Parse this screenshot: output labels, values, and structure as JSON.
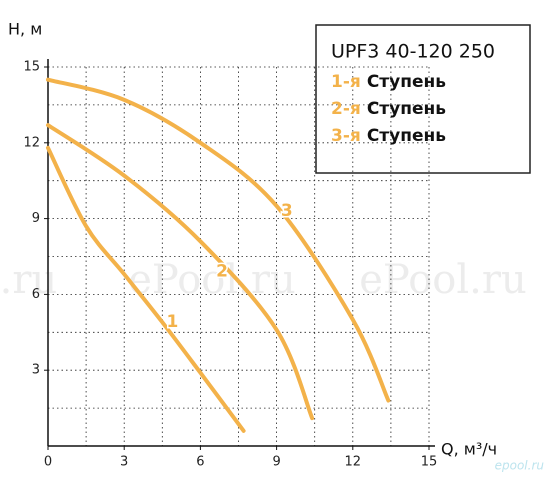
{
  "chart_data": {
    "type": "line",
    "title": "UPF3 40-120 250",
    "y_label": "H, м",
    "x_label": "Q, м³/ч",
    "xlim": [
      0,
      15
    ],
    "ylim": [
      0,
      15
    ],
    "xticks": [
      0,
      3,
      6,
      9,
      12,
      15
    ],
    "yticks": [
      3,
      6,
      9,
      12,
      15
    ],
    "xgrid": [
      1.5,
      3,
      4.5,
      6,
      7.5,
      9,
      10.5,
      12,
      13.5,
      15
    ],
    "ygrid": [
      1.5,
      3,
      4.5,
      6,
      7.5,
      9,
      10.5,
      12,
      13.5,
      15
    ],
    "series": [
      {
        "name": "1",
        "color": "#f3b24a",
        "x": [
          0,
          1.5,
          3,
          4.5,
          6,
          7.7
        ],
        "values": [
          11.8,
          8.7,
          6.8,
          4.9,
          2.9,
          0.6
        ],
        "label_at": [
          4.9,
          4.9
        ]
      },
      {
        "name": "2",
        "color": "#f3b24a",
        "x": [
          0,
          3,
          6,
          9,
          10.4
        ],
        "values": [
          12.7,
          10.7,
          8.1,
          4.6,
          1.1
        ],
        "label_at": [
          6.85,
          6.9
        ]
      },
      {
        "name": "3",
        "color": "#f3b24a",
        "x": [
          0,
          3,
          6,
          9,
          12,
          13.4
        ],
        "values": [
          14.5,
          13.7,
          12,
          9.5,
          5.0,
          1.8
        ],
        "label_at": [
          9.4,
          9.3
        ]
      }
    ],
    "legend": [
      {
        "prefix": "1-я",
        "text": "Ступень"
      },
      {
        "prefix": "2-я",
        "text": "Ступень"
      },
      {
        "prefix": "3-я",
        "text": "Ступень"
      }
    ],
    "watermarks": [
      "l.ru",
      "ePool.ru",
      "ePool.ru"
    ],
    "corner_mark": "epool.ru"
  }
}
